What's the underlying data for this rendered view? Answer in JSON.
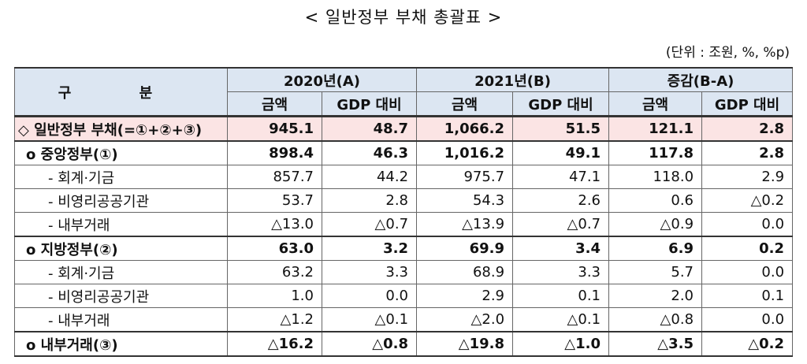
{
  "title": "< 일반정부 부채 총괄표 >",
  "unit": "(단위 : 조원, %, %p)",
  "table": {
    "header": {
      "top": [
        "구 분",
        "2020년(A)",
        "2021년(B)",
        "증감(B-A)"
      ],
      "sub": [
        "금액",
        "GDP 대비",
        "금액",
        "GDP 대비",
        "금액",
        "GDP 대비"
      ]
    },
    "rows": [
      {
        "label": "◇ 일반정부 부채(=①+②+③)",
        "values": [
          "945.1",
          "48.7",
          "1,066.2",
          "51.5",
          "121.1",
          "2.8"
        ]
      },
      {
        "label": "o 중앙정부(①)",
        "values": [
          "898.4",
          "46.3",
          "1,016.2",
          "49.1",
          "117.8",
          "2.8"
        ]
      },
      {
        "label": "- 회계·기금",
        "values": [
          "857.7",
          "44.2",
          "975.7",
          "47.1",
          "118.0",
          "2.9"
        ]
      },
      {
        "label": "- 비영리공공기관",
        "values": [
          "53.7",
          "2.8",
          "54.3",
          "2.6",
          "0.6",
          "△0.2"
        ]
      },
      {
        "label": "- 내부거래",
        "values": [
          "△13.0",
          "△0.7",
          "△13.9",
          "△0.7",
          "△0.9",
          "0.0"
        ]
      },
      {
        "label": "o 지방정부(②)",
        "values": [
          "63.0",
          "3.2",
          "69.9",
          "3.4",
          "6.9",
          "0.2"
        ]
      },
      {
        "label": "- 회계·기금",
        "values": [
          "63.2",
          "3.3",
          "68.9",
          "3.3",
          "5.7",
          "0.0"
        ]
      },
      {
        "label": "- 비영리공공기관",
        "values": [
          "1.0",
          "0.0",
          "2.9",
          "0.1",
          "2.0",
          "0.1"
        ]
      },
      {
        "label": "- 내부거래",
        "values": [
          "△1.2",
          "△0.1",
          "△2.0",
          "△0.1",
          "△0.8",
          "0.0"
        ]
      },
      {
        "label": "o 내부거래(③)",
        "values": [
          "△16.2",
          "△0.8",
          "△19.8",
          "△1.0",
          "△3.5",
          "△0.2"
        ]
      }
    ]
  }
}
